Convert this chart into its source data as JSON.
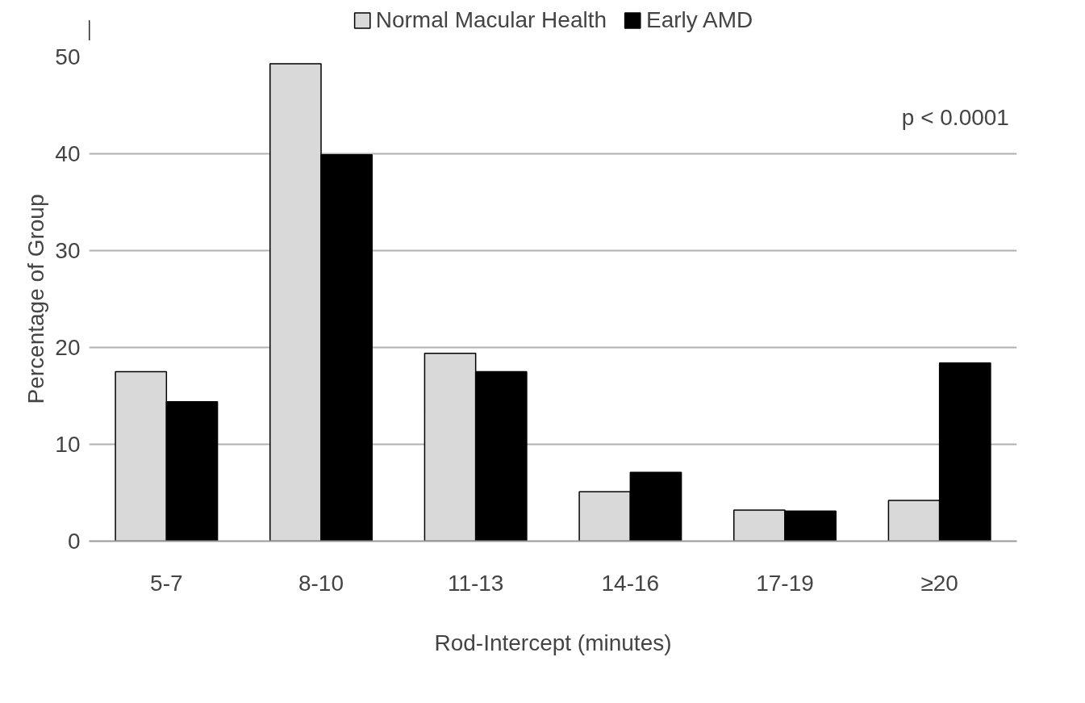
{
  "chart_data": {
    "type": "bar",
    "categories": [
      "5-7",
      "8-10",
      "11-13",
      "14-16",
      "17-19",
      "≥20"
    ],
    "series": [
      {
        "name": "Normal Macular Health",
        "color": "#d9d9d9",
        "values": [
          17.5,
          49.3,
          19.4,
          5.1,
          3.2,
          4.2
        ]
      },
      {
        "name": "Early AMD",
        "color": "#000000",
        "values": [
          14.4,
          39.9,
          17.5,
          7.1,
          3.1,
          18.4
        ]
      }
    ],
    "xlabel": "Rod-Intercept (minutes)",
    "ylabel": "Percentage of Group",
    "annotations": [
      "p < 0.0001"
    ],
    "ylim": [
      0,
      50
    ],
    "yticks": [
      0,
      10,
      20,
      30,
      40,
      50
    ],
    "grid": "y",
    "legend": "top"
  }
}
